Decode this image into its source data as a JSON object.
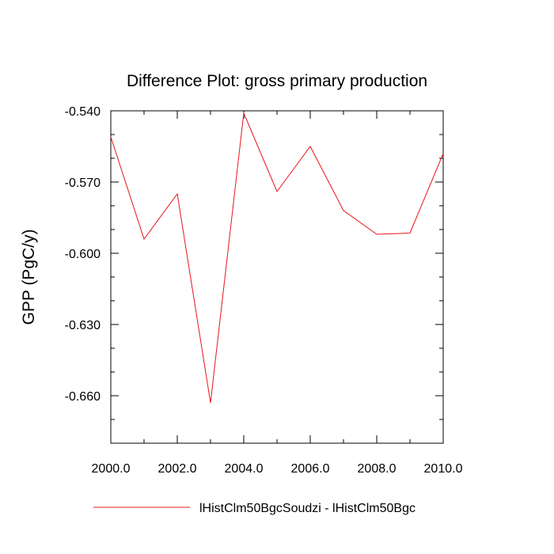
{
  "chart_data": {
    "type": "line",
    "title": "Difference Plot: gross primary production",
    "xlabel": "",
    "ylabel": "GPP  (PgC/y)",
    "xlim": [
      2000,
      2010
    ],
    "ylim": [
      -0.68,
      -0.54
    ],
    "xticks": [
      2000,
      2002,
      2004,
      2006,
      2008,
      2010
    ],
    "xtick_labels": [
      "2000.0",
      "2002.0",
      "2004.0",
      "2006.0",
      "2008.0",
      "2010.0"
    ],
    "yticks": [
      -0.54,
      -0.57,
      -0.6,
      -0.63,
      -0.66
    ],
    "ytick_labels": [
      "-0.540",
      "-0.570",
      "-0.600",
      "-0.630",
      "-0.660"
    ],
    "grid": false,
    "legend_position": "bottom",
    "series": [
      {
        "name": "lHistClm50BgcSoudzi - lHistClm50Bgc",
        "color": "#e8141b",
        "x": [
          2000,
          2001,
          2002,
          2003,
          2004,
          2005,
          2006,
          2007,
          2008,
          2009,
          2010
        ],
        "y": [
          -0.551,
          -0.594,
          -0.575,
          -0.663,
          -0.541,
          -0.574,
          -0.555,
          -0.582,
          -0.592,
          -0.5915,
          -0.558
        ]
      }
    ]
  }
}
